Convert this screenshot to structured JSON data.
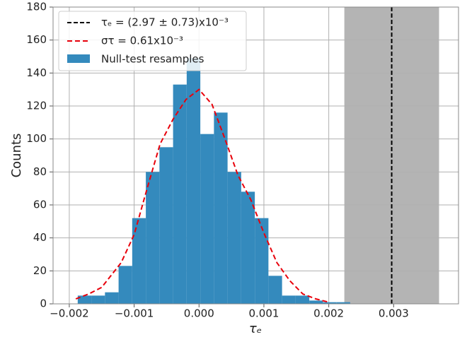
{
  "chart_data": {
    "type": "histogram",
    "xlabel": "τₑ",
    "ylabel": "Counts",
    "bins": [
      -0.00187,
      -0.00166,
      -0.00145,
      -0.00124,
      -0.00103,
      -0.00082,
      -0.00061,
      -0.0004,
      -0.00019,
      2e-05,
      0.00023,
      0.00044,
      0.00065,
      0.00086,
      0.00107,
      0.00128,
      0.00149,
      0.0017,
      0.00191,
      0.00212,
      0.00233
    ],
    "values": [
      5,
      5,
      7,
      23,
      52,
      80,
      95,
      133,
      149,
      103,
      116,
      80,
      68,
      52,
      17,
      5,
      5,
      2,
      1,
      1
    ],
    "name": "Null-test resamples",
    "color": "#348abd",
    "curve": {
      "name": "στ = 0.61x10⁻³",
      "color": "#e8000b",
      "x": [
        -0.0019,
        -0.0017,
        -0.0015,
        -0.0012,
        -0.001,
        -0.0008,
        -0.0006,
        -0.0004,
        -0.0002,
        0,
        0.0002,
        0.0004,
        0.0006,
        0.0008,
        0.001,
        0.0012,
        0.0014,
        0.0016,
        0.0018,
        0.002
      ],
      "values": [
        3,
        6,
        10,
        25,
        42,
        70,
        97,
        112,
        124,
        130,
        121,
        100,
        78,
        63,
        43,
        25,
        14,
        6,
        3,
        1
      ]
    },
    "vline": {
      "name": "τₑ = (2.97 ± 0.73)x10⁻³",
      "color": "#000000",
      "value": 0.00297
    },
    "band": {
      "range": [
        0.00224,
        0.0037
      ],
      "color": "#b0b0b0"
    },
    "xlim": [
      -0.00225,
      0.004
    ],
    "ylim": [
      0,
      180
    ],
    "xticks": [
      {
        "value": -0.002,
        "label": "−0.002"
      },
      {
        "value": -0.001,
        "label": "−0.001"
      },
      {
        "value": 0,
        "label": "0.000"
      },
      0.001,
      0.002,
      0.003
    ],
    "yticks": [
      0,
      20,
      40,
      60,
      80,
      100,
      120,
      140,
      160,
      180
    ],
    "grid": true,
    "legend": "upper left"
  }
}
